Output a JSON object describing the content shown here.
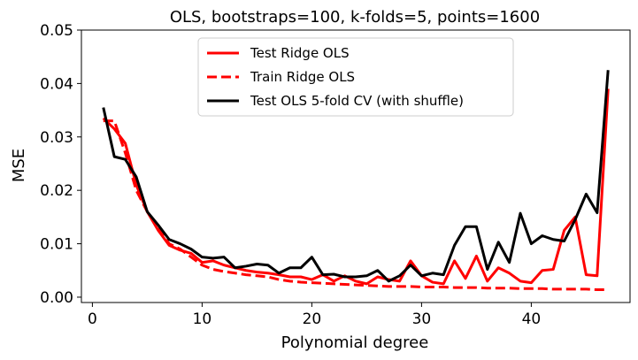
{
  "chart_data": {
    "type": "line",
    "title": "OLS, bootstraps=100, k-folds=5,  points=1600",
    "xlabel": "Polynomial degree",
    "ylabel": "MSE",
    "xlim": [
      -1,
      49
    ],
    "ylim": [
      -0.001,
      0.05
    ],
    "xticks": [
      0,
      10,
      20,
      30,
      40
    ],
    "yticks": [
      0.0,
      0.01,
      0.02,
      0.03,
      0.04,
      0.05
    ],
    "ytick_labels": [
      "0.00",
      "0.01",
      "0.02",
      "0.03",
      "0.04",
      "0.05"
    ],
    "grid": false,
    "legend_position": "top-center",
    "x": [
      1,
      2,
      3,
      4,
      5,
      6,
      7,
      8,
      9,
      10,
      11,
      12,
      13,
      14,
      15,
      16,
      17,
      18,
      19,
      20,
      21,
      22,
      23,
      24,
      25,
      26,
      27,
      28,
      29,
      30,
      31,
      32,
      33,
      34,
      35,
      36,
      37,
      38,
      39,
      40,
      41,
      42,
      43,
      44,
      45,
      46,
      47
    ],
    "series": [
      {
        "name": "Test Ridge OLS",
        "color": "#ff0000",
        "dash": "solid",
        "values": [
          0.0335,
          0.0315,
          0.0288,
          0.021,
          0.016,
          0.0125,
          0.0097,
          0.0088,
          0.0082,
          0.0065,
          0.0068,
          0.006,
          0.0055,
          0.005,
          0.0047,
          0.0045,
          0.0042,
          0.0038,
          0.0038,
          0.0033,
          0.0042,
          0.003,
          0.004,
          0.003,
          0.0025,
          0.0038,
          0.0033,
          0.003,
          0.0068,
          0.004,
          0.0028,
          0.0025,
          0.0068,
          0.0035,
          0.0077,
          0.003,
          0.0055,
          0.0045,
          0.003,
          0.0027,
          0.005,
          0.0052,
          0.0125,
          0.015,
          0.0042,
          0.004,
          0.039
        ]
      },
      {
        "name": "Train Ridge OLS",
        "color": "#ff0000",
        "dash": "dashed",
        "values": [
          0.033,
          0.033,
          0.027,
          0.02,
          0.016,
          0.013,
          0.01,
          0.009,
          0.0075,
          0.006,
          0.0052,
          0.0048,
          0.0045,
          0.0042,
          0.004,
          0.0038,
          0.0033,
          0.003,
          0.0028,
          0.0027,
          0.0026,
          0.0025,
          0.0024,
          0.0023,
          0.0022,
          0.0021,
          0.002,
          0.002,
          0.002,
          0.0019,
          0.0019,
          0.0019,
          0.0018,
          0.0018,
          0.0018,
          0.0017,
          0.0017,
          0.0017,
          0.0016,
          0.0016,
          0.0016,
          0.0015,
          0.0015,
          0.0015,
          0.0015,
          0.0014,
          0.0014
        ]
      },
      {
        "name": "Test OLS 5-fold CV (with shuffle)",
        "color": "#000000",
        "dash": "solid",
        "values": [
          0.0355,
          0.0263,
          0.0258,
          0.0225,
          0.016,
          0.0135,
          0.0108,
          0.01,
          0.009,
          0.0075,
          0.0073,
          0.0075,
          0.0055,
          0.0058,
          0.0062,
          0.006,
          0.0045,
          0.0055,
          0.0055,
          0.0075,
          0.0042,
          0.0043,
          0.0038,
          0.0038,
          0.004,
          0.005,
          0.003,
          0.004,
          0.006,
          0.004,
          0.0045,
          0.0042,
          0.0097,
          0.0132,
          0.0132,
          0.0052,
          0.0103,
          0.0065,
          0.0157,
          0.01,
          0.0115,
          0.0108,
          0.0105,
          0.0145,
          0.0193,
          0.0158,
          0.0425
        ]
      }
    ]
  }
}
